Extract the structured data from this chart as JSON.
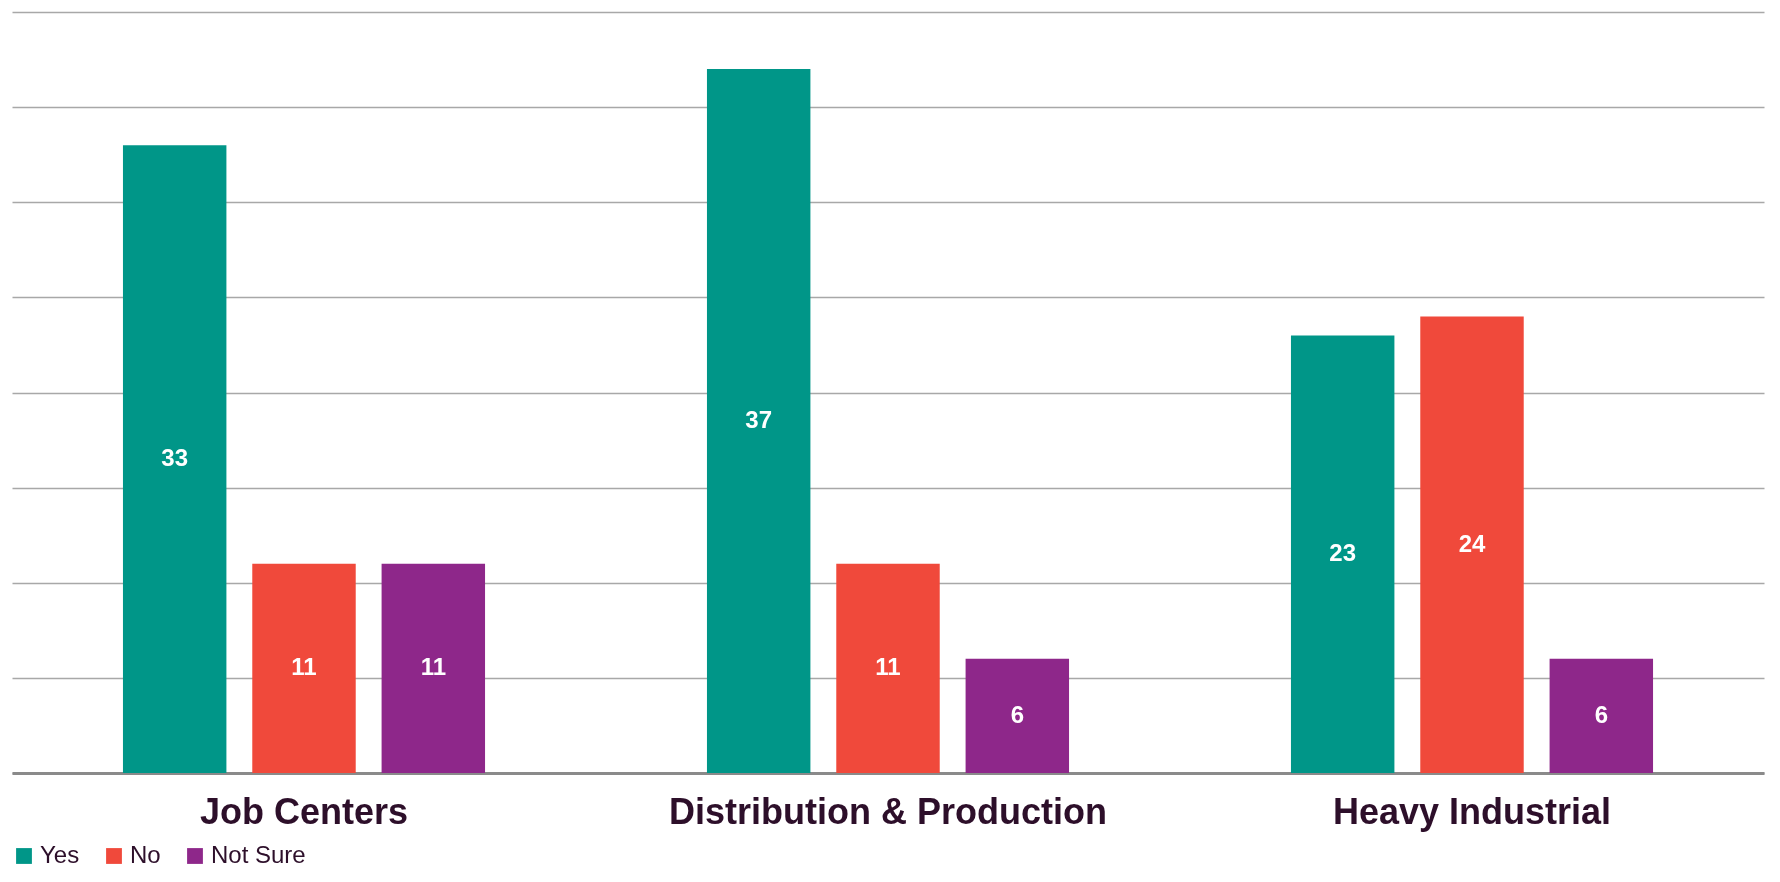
{
  "chart_data": {
    "type": "bar",
    "categories": [
      "Job Centers",
      "Distribution & Production",
      "Heavy Industrial"
    ],
    "series": [
      {
        "name": "Yes",
        "color": "#009688",
        "values": [
          33,
          37,
          23
        ]
      },
      {
        "name": "No",
        "color": "#f0493b",
        "values": [
          11,
          11,
          24
        ]
      },
      {
        "name": "Not Sure",
        "color": "#8e278a",
        "values": [
          11,
          6,
          6
        ]
      }
    ],
    "ylim": [
      0,
      40
    ],
    "yticks": [
      {
        "value": 0,
        "label": null
      },
      {
        "value": 5,
        "label": null
      },
      {
        "value": 10,
        "label": null
      },
      {
        "value": 15,
        "label": null
      },
      {
        "value": 20,
        "label": null
      },
      {
        "value": 25,
        "label": null
      },
      {
        "value": 30,
        "label": null
      },
      {
        "value": 35,
        "label": null
      },
      {
        "value": 40,
        "label": null
      }
    ],
    "grid": "y",
    "tick_labels": "x",
    "legend": "bottom",
    "data_labels": true
  }
}
